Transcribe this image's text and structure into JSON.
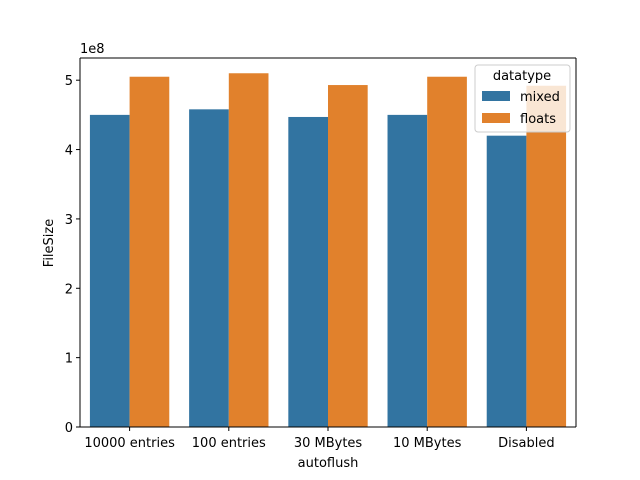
{
  "chart_data": {
    "type": "bar",
    "categories": [
      "10000 entries",
      "100 entries",
      "30 MBytes",
      "10 MBytes",
      "Disabled"
    ],
    "series": [
      {
        "name": "mixed",
        "color": "#3274a1",
        "values": [
          450000000,
          458000000,
          447000000,
          450000000,
          420000000
        ]
      },
      {
        "name": "floats",
        "color": "#e1812c",
        "values": [
          505000000,
          510000000,
          493000000,
          505000000,
          492000000
        ]
      }
    ],
    "xlabel": "autoflush",
    "ylabel": "FileSize",
    "ylim": [
      0,
      532000000
    ],
    "yticks": [
      0,
      1,
      2,
      3,
      4,
      5
    ],
    "y_offset_text": "1e8",
    "y_scale": 100000000,
    "legend": {
      "title": "datatype",
      "placement": "top-right"
    },
    "grid": false
  }
}
